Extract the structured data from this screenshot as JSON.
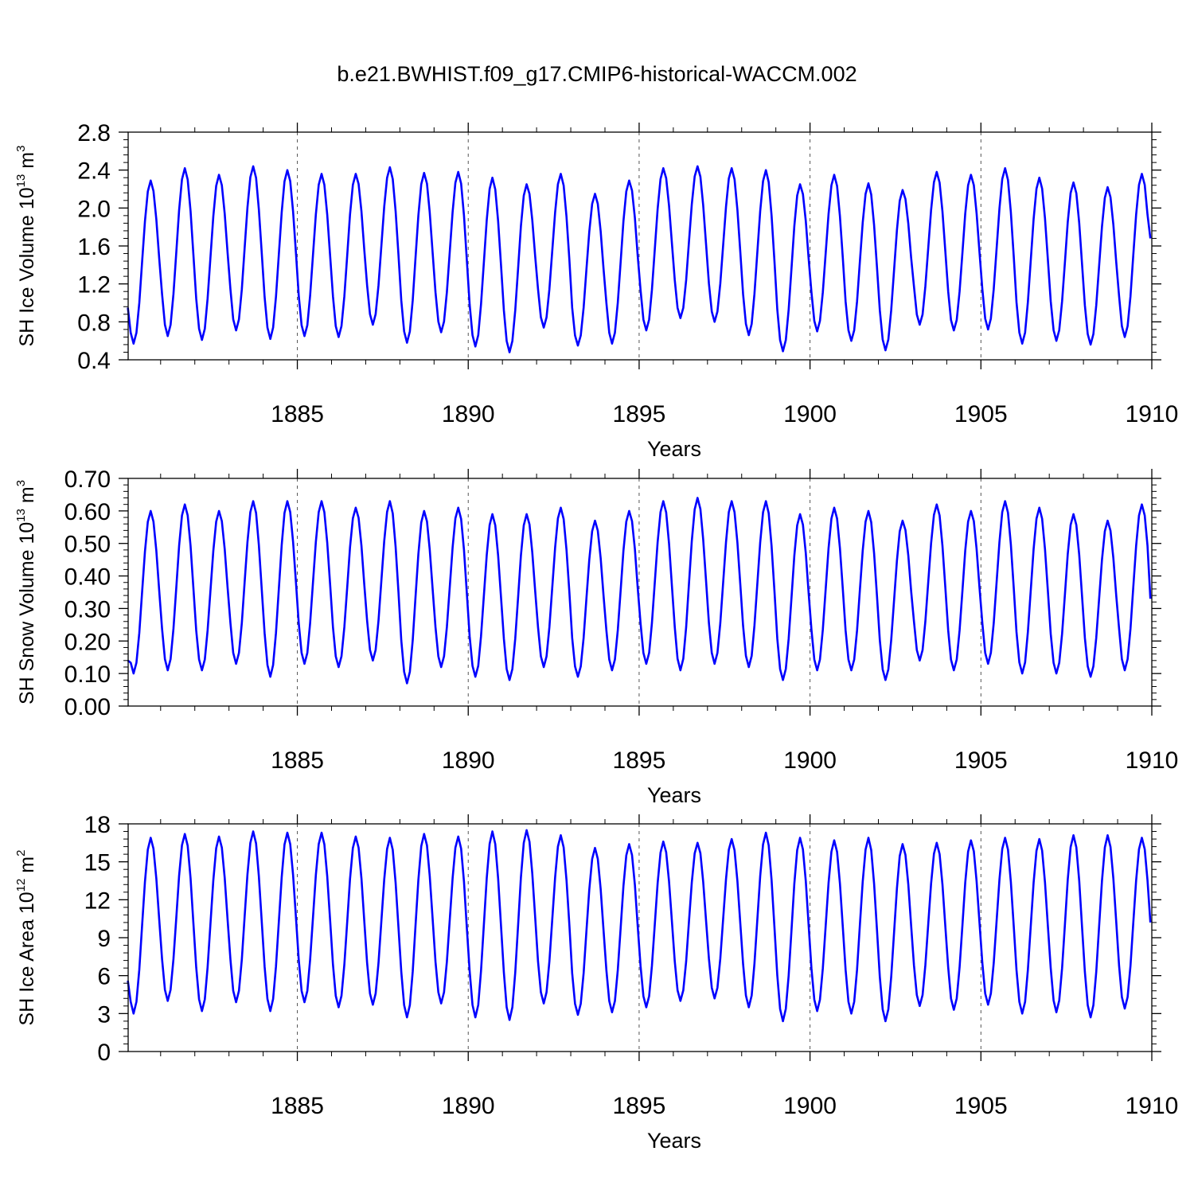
{
  "title": "b.e21.BWHIST.f09_g17.CMIP6-historical-WACCM.002",
  "colors": {
    "series": "#0000ff",
    "axis": "#000000",
    "vline": "#555555"
  },
  "chart_data": [
    {
      "type": "line",
      "name": "sh-ice-volume",
      "ylabel_main": "SH Ice Volume 10",
      "ylabel_exp": "13",
      "ylabel_unit": " m",
      "ylabel_unit_exp": "3",
      "xlabel": "Years",
      "xlim": [
        1880.05,
        1910.0
      ],
      "ylim": [
        0.4,
        2.8
      ],
      "yticks": [
        0.4,
        0.8,
        1.2,
        1.6,
        2.0,
        2.4,
        2.8
      ],
      "ytick_labels": [
        "0.4",
        "0.8",
        "1.2",
        "1.6",
        "2.0",
        "2.4",
        "2.8"
      ],
      "xticks": [
        1885,
        1890,
        1895,
        1900,
        1905,
        1910
      ],
      "xtick_labels": [
        "1885",
        "1890",
        "1895",
        "1900",
        "1905",
        "1910"
      ],
      "start_year": 1880.05,
      "start_value": 0.95,
      "end_value": 1.68,
      "annual_max": [
        2.29,
        2.42,
        2.35,
        2.44,
        2.4,
        2.36,
        2.36,
        2.43,
        2.37,
        2.38,
        2.32,
        2.25,
        2.36,
        2.15,
        2.29,
        2.42,
        2.44,
        2.42,
        2.4,
        2.25,
        2.35,
        2.26,
        2.19,
        2.38,
        2.35,
        2.42,
        2.32,
        2.27,
        2.22,
        2.36
      ],
      "annual_min": [
        0.57,
        0.65,
        0.61,
        0.71,
        0.62,
        0.65,
        0.64,
        0.77,
        0.58,
        0.69,
        0.54,
        0.48,
        0.74,
        0.55,
        0.57,
        0.71,
        0.84,
        0.8,
        0.66,
        0.49,
        0.7,
        0.6,
        0.5,
        0.77,
        0.71,
        0.72,
        0.57,
        0.6,
        0.56,
        0.64
      ]
    },
    {
      "type": "line",
      "name": "sh-snow-volume",
      "ylabel_main": "SH Snow Volume 10",
      "ylabel_exp": "13",
      "ylabel_unit": " m",
      "ylabel_unit_exp": "3",
      "xlabel": "Years",
      "xlim": [
        1880.05,
        1910.0
      ],
      "ylim": [
        0.0,
        0.7
      ],
      "yticks": [
        0.0,
        0.1,
        0.2,
        0.3,
        0.4,
        0.5,
        0.6,
        0.7
      ],
      "ytick_labels": [
        "0.00",
        "0.10",
        "0.20",
        "0.30",
        "0.40",
        "0.50",
        "0.60",
        "0.70"
      ],
      "xticks": [
        1885,
        1890,
        1895,
        1900,
        1905,
        1910
      ],
      "xtick_labels": [
        "1885",
        "1890",
        "1895",
        "1900",
        "1905",
        "1910"
      ],
      "start_year": 1880.05,
      "start_value": 0.14,
      "end_value": 0.33,
      "annual_max": [
        0.6,
        0.62,
        0.6,
        0.63,
        0.63,
        0.63,
        0.61,
        0.63,
        0.6,
        0.61,
        0.59,
        0.59,
        0.61,
        0.57,
        0.6,
        0.63,
        0.64,
        0.63,
        0.63,
        0.59,
        0.61,
        0.6,
        0.57,
        0.62,
        0.6,
        0.63,
        0.61,
        0.59,
        0.57,
        0.62
      ],
      "annual_min": [
        0.1,
        0.11,
        0.11,
        0.13,
        0.09,
        0.13,
        0.12,
        0.14,
        0.07,
        0.12,
        0.09,
        0.08,
        0.12,
        0.09,
        0.11,
        0.13,
        0.11,
        0.13,
        0.12,
        0.08,
        0.11,
        0.11,
        0.08,
        0.14,
        0.11,
        0.13,
        0.1,
        0.1,
        0.09,
        0.11
      ]
    },
    {
      "type": "line",
      "name": "sh-ice-area",
      "ylabel_main": "SH Ice Area 10",
      "ylabel_exp": "12",
      "ylabel_unit": " m",
      "ylabel_unit_exp": "2",
      "xlabel": "Years",
      "xlim": [
        1880.05,
        1910.0
      ],
      "ylim": [
        0,
        18
      ],
      "yticks": [
        0,
        3,
        6,
        9,
        12,
        15,
        18
      ],
      "ytick_labels": [
        "0",
        "3",
        "6",
        "9",
        "12",
        "15",
        "18"
      ],
      "xticks": [
        1885,
        1890,
        1895,
        1900,
        1905,
        1910
      ],
      "xtick_labels": [
        "1885",
        "1890",
        "1895",
        "1900",
        "1905",
        "1910"
      ],
      "start_year": 1880.05,
      "start_value": 5.6,
      "end_value": 10.2,
      "annual_max": [
        16.9,
        17.2,
        17.0,
        17.4,
        17.3,
        17.3,
        17.0,
        16.9,
        17.2,
        17.0,
        17.4,
        17.5,
        17.1,
        16.1,
        16.4,
        16.6,
        16.5,
        16.8,
        17.3,
        16.9,
        16.7,
        16.9,
        16.4,
        16.5,
        16.7,
        16.9,
        16.8,
        17.1,
        17.1,
        16.9
      ],
      "annual_min": [
        3.0,
        4.0,
        3.2,
        3.9,
        3.2,
        3.9,
        3.5,
        3.7,
        2.7,
        3.8,
        2.7,
        2.5,
        3.8,
        2.9,
        3.1,
        3.5,
        4.0,
        4.2,
        3.5,
        2.4,
        3.2,
        3.0,
        2.4,
        3.6,
        3.3,
        3.7,
        3.0,
        3.1,
        2.7,
        3.4
      ]
    }
  ]
}
